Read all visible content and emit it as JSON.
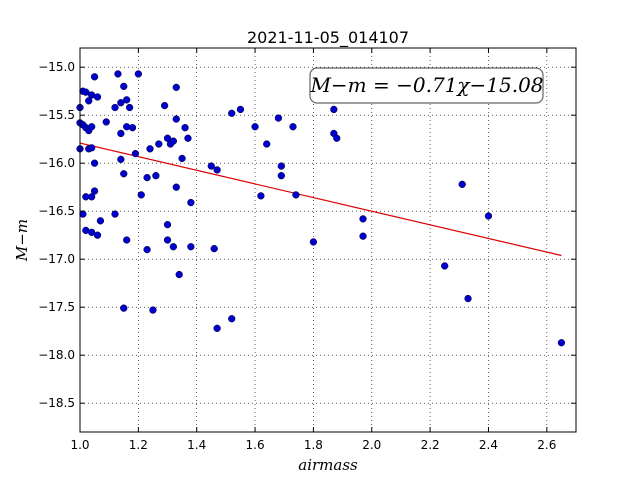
{
  "chart_data": {
    "type": "scatter",
    "title": "2021-11-05_014107",
    "xlabel": "airmass",
    "ylabel": "M−m",
    "xlim": [
      1.0,
      2.7
    ],
    "ylim": [
      -18.8,
      -14.8
    ],
    "xticks": [
      1.0,
      1.2,
      1.4,
      1.6,
      1.8,
      2.0,
      2.2,
      2.4,
      2.6
    ],
    "yticks": [
      -15.0,
      -15.5,
      -16.0,
      -16.5,
      -17.0,
      -17.5,
      -18.0,
      -18.5
    ],
    "xtick_labels": [
      "1.0",
      "1.2",
      "1.4",
      "1.6",
      "1.8",
      "2.0",
      "2.2",
      "2.4",
      "2.6"
    ],
    "ytick_labels": [
      "−15.0",
      "−15.5",
      "−16.0",
      "−16.5",
      "−17.0",
      "−17.5",
      "−18.0",
      "−18.5"
    ],
    "grid": true,
    "annotation": "M−m = −0.71χ−15.08",
    "fit": {
      "slope": -0.71,
      "intercept": -15.08,
      "x_range": [
        1.0,
        2.65
      ],
      "color": "#dd0000"
    },
    "point_color": "#0000cc",
    "points": [
      [
        1.0,
        -15.42
      ],
      [
        1.0,
        -15.58
      ],
      [
        1.0,
        -15.85
      ],
      [
        1.01,
        -15.25
      ],
      [
        1.01,
        -15.6
      ],
      [
        1.01,
        -16.53
      ],
      [
        1.02,
        -15.26
      ],
      [
        1.02,
        -15.63
      ],
      [
        1.02,
        -16.35
      ],
      [
        1.02,
        -16.7
      ],
      [
        1.03,
        -15.66
      ],
      [
        1.03,
        -15.35
      ],
      [
        1.03,
        -15.85
      ],
      [
        1.04,
        -15.29
      ],
      [
        1.04,
        -15.62
      ],
      [
        1.04,
        -15.84
      ],
      [
        1.04,
        -16.72
      ],
      [
        1.04,
        -16.35
      ],
      [
        1.05,
        -15.1
      ],
      [
        1.05,
        -16.0
      ],
      [
        1.05,
        -16.29
      ],
      [
        1.06,
        -16.75
      ],
      [
        1.06,
        -15.31
      ],
      [
        1.07,
        -16.6
      ],
      [
        1.09,
        -15.57
      ],
      [
        1.12,
        -15.42
      ],
      [
        1.12,
        -16.53
      ],
      [
        1.13,
        -15.07
      ],
      [
        1.14,
        -15.37
      ],
      [
        1.14,
        -15.69
      ],
      [
        1.14,
        -15.96
      ],
      [
        1.15,
        -15.2
      ],
      [
        1.15,
        -16.11
      ],
      [
        1.15,
        -17.51
      ],
      [
        1.16,
        -15.62
      ],
      [
        1.16,
        -15.34
      ],
      [
        1.16,
        -16.8
      ],
      [
        1.17,
        -15.42
      ],
      [
        1.18,
        -15.63
      ],
      [
        1.19,
        -15.9
      ],
      [
        1.2,
        -15.07
      ],
      [
        1.21,
        -16.33
      ],
      [
        1.23,
        -16.15
      ],
      [
        1.23,
        -16.9
      ],
      [
        1.24,
        -15.85
      ],
      [
        1.25,
        -17.53
      ],
      [
        1.26,
        -16.13
      ],
      [
        1.27,
        -15.8
      ],
      [
        1.29,
        -15.4
      ],
      [
        1.3,
        -15.74
      ],
      [
        1.3,
        -16.64
      ],
      [
        1.3,
        -16.8
      ],
      [
        1.31,
        -15.8
      ],
      [
        1.32,
        -16.87
      ],
      [
        1.32,
        -15.77
      ],
      [
        1.33,
        -15.21
      ],
      [
        1.33,
        -15.54
      ],
      [
        1.33,
        -16.25
      ],
      [
        1.34,
        -17.16
      ],
      [
        1.35,
        -15.95
      ],
      [
        1.36,
        -15.63
      ],
      [
        1.37,
        -15.74
      ],
      [
        1.38,
        -16.41
      ],
      [
        1.38,
        -16.87
      ],
      [
        1.45,
        -16.03
      ],
      [
        1.46,
        -16.89
      ],
      [
        1.47,
        -16.07
      ],
      [
        1.47,
        -17.72
      ],
      [
        1.52,
        -15.48
      ],
      [
        1.52,
        -17.62
      ],
      [
        1.55,
        -15.44
      ],
      [
        1.6,
        -15.62
      ],
      [
        1.62,
        -16.34
      ],
      [
        1.64,
        -15.8
      ],
      [
        1.68,
        -15.53
      ],
      [
        1.69,
        -16.03
      ],
      [
        1.69,
        -16.13
      ],
      [
        1.73,
        -15.62
      ],
      [
        1.74,
        -16.33
      ],
      [
        1.8,
        -16.82
      ],
      [
        1.87,
        -15.44
      ],
      [
        1.87,
        -15.69
      ],
      [
        1.88,
        -15.74
      ],
      [
        1.97,
        -16.58
      ],
      [
        1.97,
        -16.76
      ],
      [
        2.25,
        -17.07
      ],
      [
        2.31,
        -16.22
      ],
      [
        2.33,
        -17.41
      ],
      [
        2.4,
        -16.55
      ],
      [
        2.65,
        -17.87
      ]
    ]
  }
}
